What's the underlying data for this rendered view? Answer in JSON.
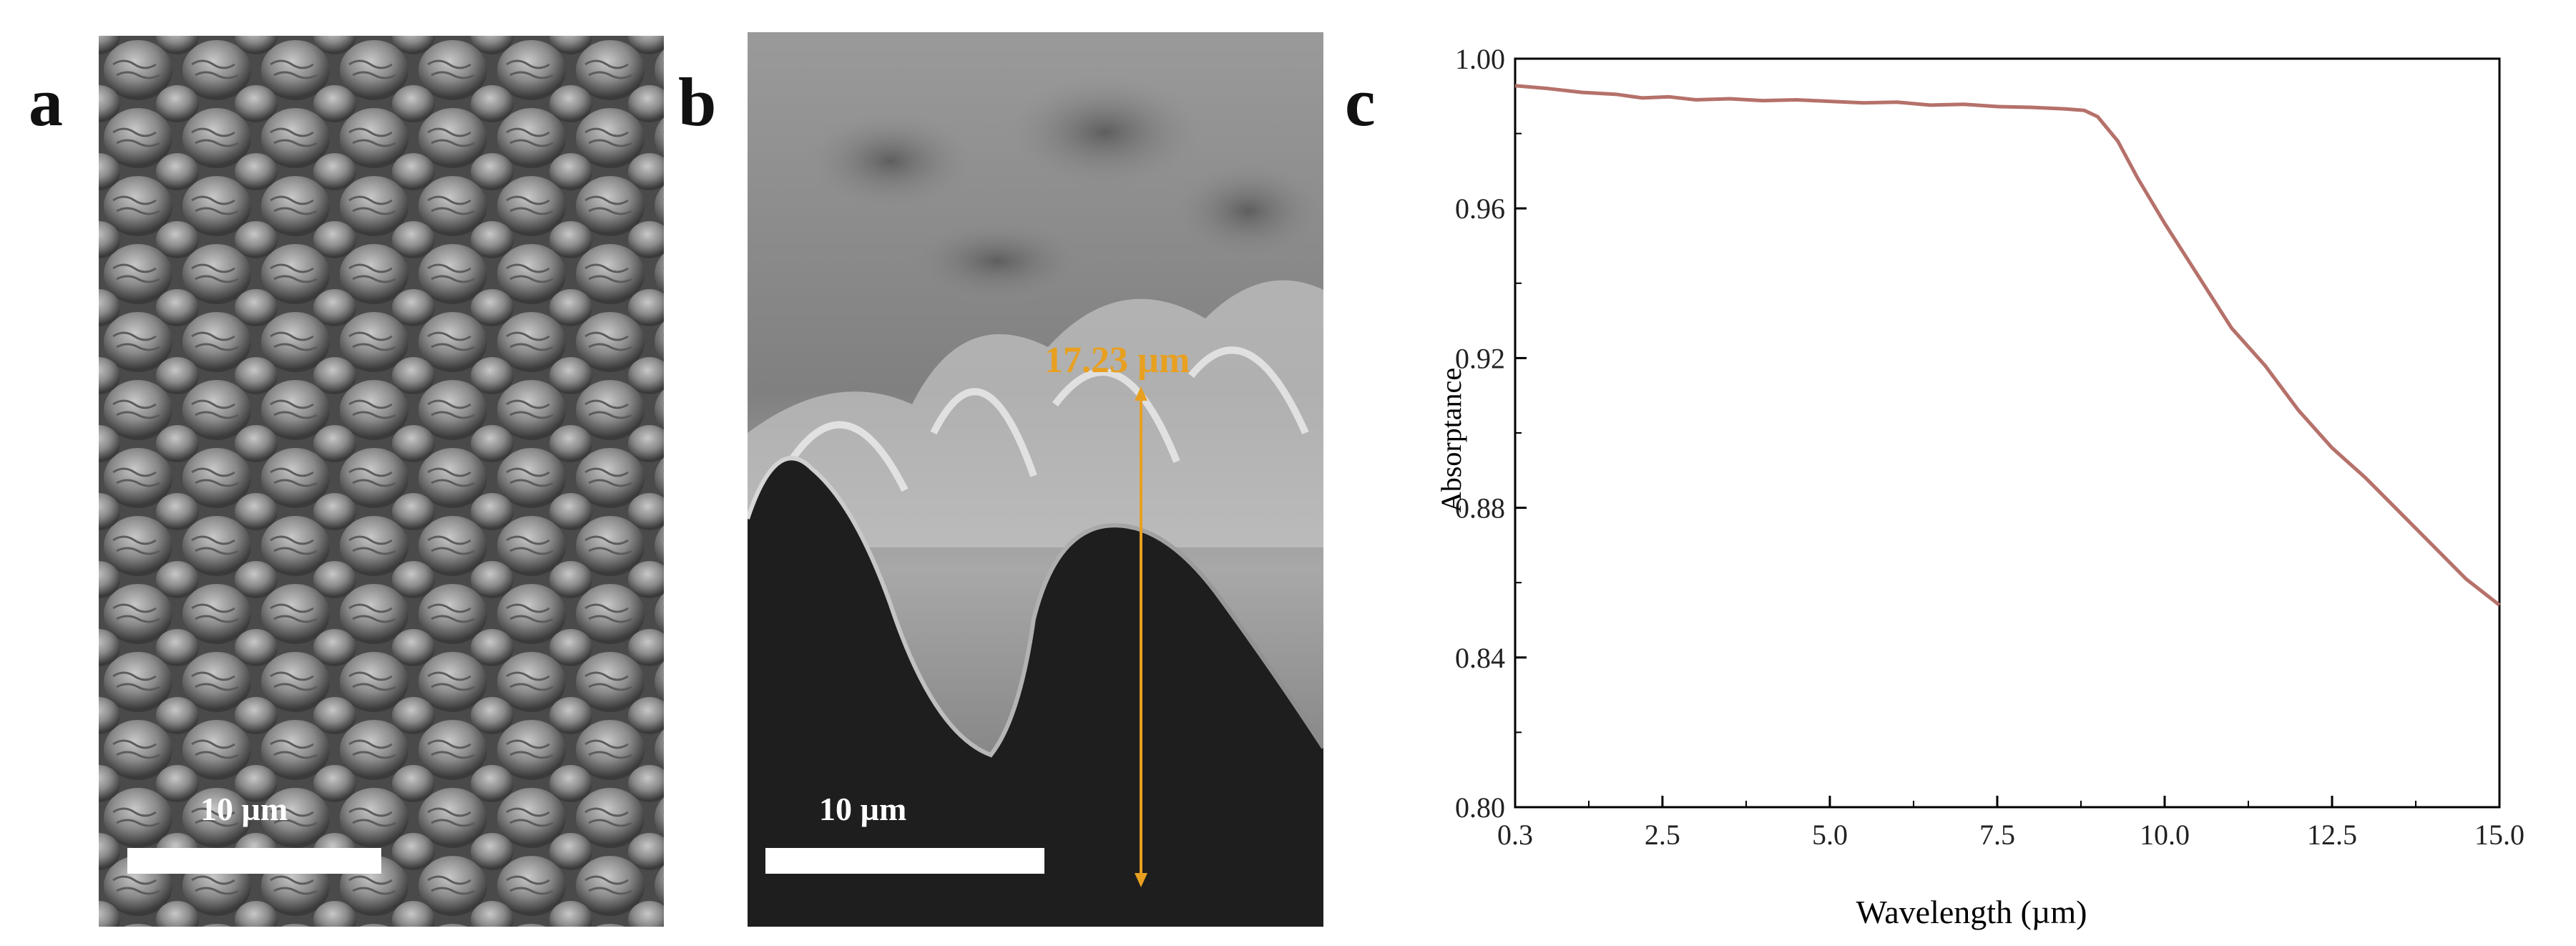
{
  "panels": {
    "a": {
      "letter": "a",
      "scale_label": "10 µm"
    },
    "b": {
      "letter": "b",
      "scale_label": "10 µm",
      "measurement": "17.23 µm"
    },
    "c": {
      "letter": "c"
    }
  },
  "colors": {
    "curve": "#b5716a",
    "measure": "#e8a020",
    "axis": "#000000"
  },
  "chart_data": {
    "type": "line",
    "title": "",
    "xlabel": "Wavelength (µm)",
    "ylabel": "Absorptance",
    "xlim": [
      0.3,
      15.0
    ],
    "ylim": [
      0.8,
      1.0
    ],
    "xticks": [
      0.3,
      2.5,
      5.0,
      7.5,
      10.0,
      12.5,
      15.0
    ],
    "xtick_labels": [
      "0.3",
      "2.5",
      "5.0",
      "7.5",
      "10.0",
      "12.5",
      "15.0"
    ],
    "yticks": [
      0.8,
      0.84,
      0.88,
      0.92,
      0.96,
      1.0
    ],
    "ytick_labels": [
      "0.80",
      "0.84",
      "0.88",
      "0.92",
      "0.96",
      "1.00"
    ],
    "series": [
      {
        "name": "Absorptance",
        "x": [
          0.3,
          0.8,
          1.3,
          1.8,
          2.2,
          2.6,
          3.0,
          3.5,
          4.0,
          4.5,
          5.0,
          5.5,
          6.0,
          6.5,
          7.0,
          7.5,
          8.0,
          8.5,
          8.8,
          9.0,
          9.3,
          9.6,
          10.0,
          10.5,
          11.0,
          11.5,
          12.0,
          12.5,
          13.0,
          13.5,
          14.0,
          14.5,
          15.0
        ],
        "values": [
          0.9928,
          0.992,
          0.991,
          0.9905,
          0.9895,
          0.9898,
          0.989,
          0.9893,
          0.9888,
          0.989,
          0.9886,
          0.9882,
          0.9884,
          0.9876,
          0.9878,
          0.9872,
          0.987,
          0.9866,
          0.9862,
          0.9845,
          0.978,
          0.968,
          0.956,
          0.942,
          0.928,
          0.918,
          0.906,
          0.896,
          0.888,
          0.879,
          0.87,
          0.861,
          0.854
        ]
      }
    ]
  }
}
